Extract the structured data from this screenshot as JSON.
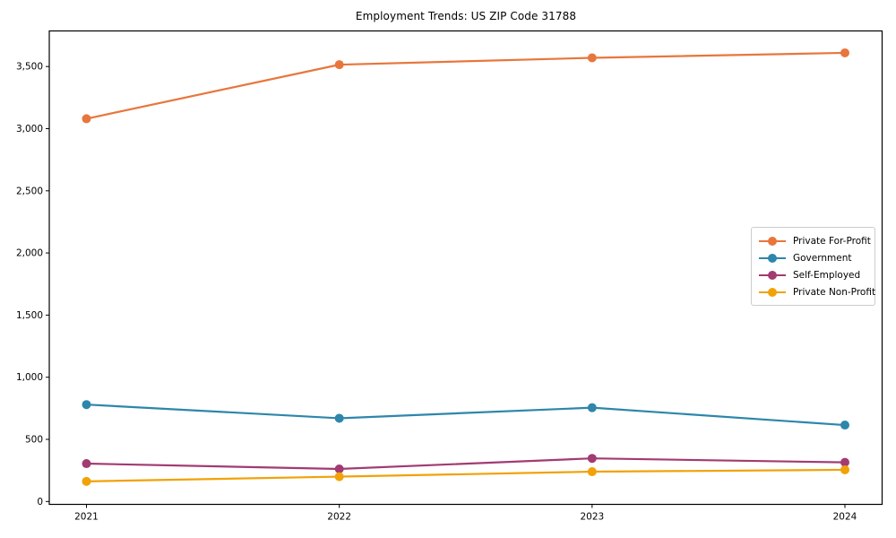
{
  "chart_data": {
    "type": "line",
    "title": "Employment Trends: US ZIP Code 31788",
    "xlabel": "",
    "ylabel": "",
    "categories": [
      "2021",
      "2022",
      "2023",
      "2024"
    ],
    "series": [
      {
        "name": "Private For-Profit",
        "color": "#E8763C",
        "values": [
          3080,
          3515,
          3570,
          3610
        ]
      },
      {
        "name": "Government",
        "color": "#2E86AB",
        "values": [
          780,
          670,
          755,
          615
        ]
      },
      {
        "name": "Self-Employed",
        "color": "#A23B72",
        "values": [
          305,
          262,
          347,
          315
        ]
      },
      {
        "name": "Private Non-Profit",
        "color": "#F1A208",
        "values": [
          162,
          200,
          240,
          255
        ]
      }
    ],
    "y_ticks": [
      {
        "value": 0,
        "label": "0"
      },
      {
        "value": 500,
        "label": "500"
      },
      {
        "value": 1000,
        "label": "1,000"
      },
      {
        "value": 1500,
        "label": "1,500"
      },
      {
        "value": 2000,
        "label": "2,000"
      },
      {
        "value": 2500,
        "label": "2,500"
      },
      {
        "value": 3000,
        "label": "3,000"
      },
      {
        "value": 3500,
        "label": "3,500"
      }
    ],
    "ylim": [
      -23,
      3786
    ],
    "grid": false,
    "marker": "circle",
    "legend_position": "center-right",
    "axis_color": "#000000",
    "tick_label_color": "#000000"
  }
}
